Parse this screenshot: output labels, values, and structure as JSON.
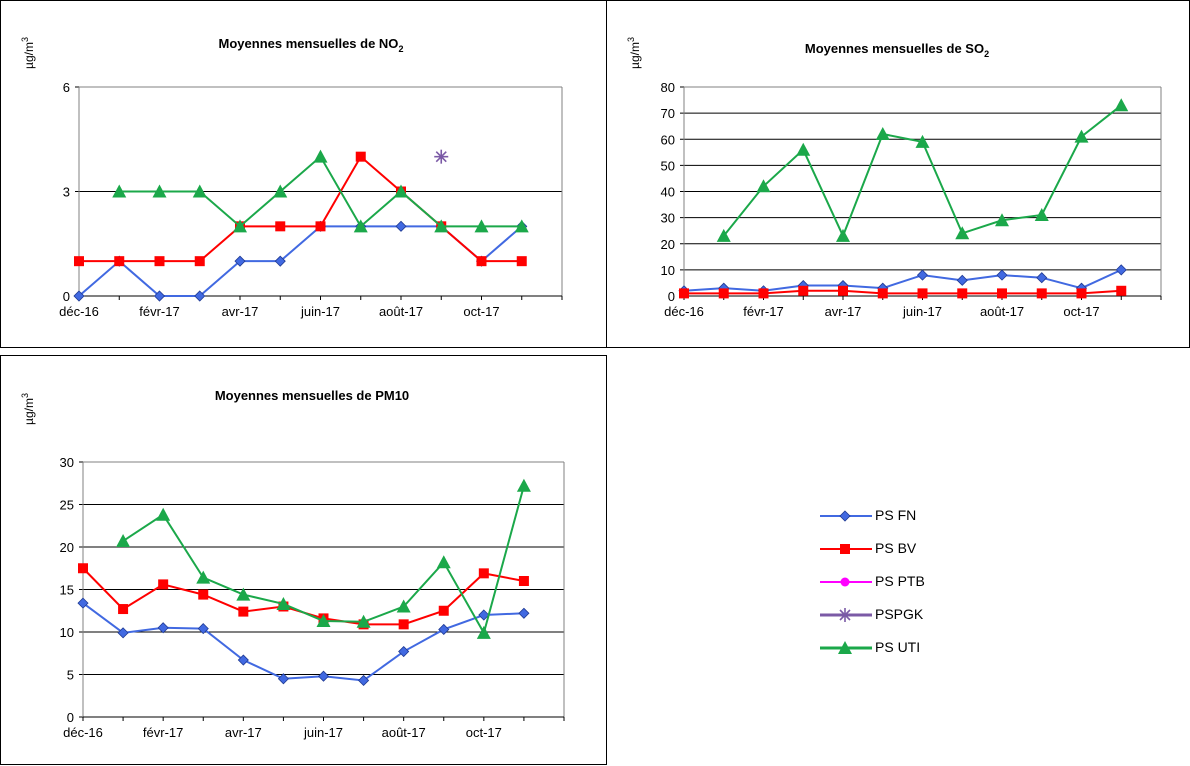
{
  "colors": {
    "PS FN": "#4169E1",
    "PS BV": "#FF0000",
    "PS PTB": "#FF00FF",
    "PSPGK": "#7B5AA6",
    "PS UTI": "#1BA84A"
  },
  "legend": {
    "items": [
      {
        "label": "PS FN",
        "marker": "diamond"
      },
      {
        "label": "PS BV",
        "marker": "square"
      },
      {
        "label": "PS PTB",
        "marker": "circle"
      },
      {
        "label": "PSPGK",
        "marker": "star"
      },
      {
        "label": "PS UTI",
        "marker": "triangle"
      }
    ]
  },
  "chart_data": [
    {
      "type": "line",
      "title": "Moyennes mensuelles de NO",
      "title_sub": "2",
      "ylabel": "µg/m",
      "ylabel_sup": "3",
      "ylim": [
        0,
        6
      ],
      "yticks": [
        "0",
        "3",
        "6"
      ],
      "x_tick_labels": [
        "déc-16",
        "févr-17",
        "avr-17",
        "juin-17",
        "août-17",
        "oct-17"
      ],
      "n_points": 12,
      "grid": true,
      "series": [
        {
          "name": "PS FN",
          "marker": "diamond",
          "values": [
            0,
            1,
            0,
            0,
            1,
            1,
            2,
            2,
            2,
            2,
            1,
            2
          ]
        },
        {
          "name": "PS BV",
          "marker": "square",
          "values": [
            1,
            1,
            1,
            1,
            2,
            2,
            2,
            4,
            3,
            2,
            1,
            1
          ]
        },
        {
          "name": "PSPGK",
          "marker": "star",
          "values": [
            null,
            null,
            null,
            null,
            null,
            null,
            null,
            null,
            null,
            4,
            null,
            null
          ]
        },
        {
          "name": "PS UTI",
          "marker": "triangle",
          "values": [
            null,
            3,
            3,
            3,
            2,
            3,
            4,
            2,
            3,
            2,
            2,
            2
          ]
        }
      ]
    },
    {
      "type": "line",
      "title": "Moyennes mensuelles de SO",
      "title_sub": "2",
      "ylabel": "µg/m",
      "ylabel_sup": "3",
      "ylim": [
        0,
        80
      ],
      "yticks": [
        "0",
        "10",
        "20",
        "30",
        "40",
        "50",
        "60",
        "70",
        "80"
      ],
      "x_tick_labels": [
        "déc-16",
        "févr-17",
        "avr-17",
        "juin-17",
        "août-17",
        "oct-17"
      ],
      "n_points": 12,
      "grid": true,
      "series": [
        {
          "name": "PS FN",
          "marker": "diamond",
          "values": [
            2,
            3,
            2,
            4,
            4,
            3,
            8,
            6,
            8,
            7,
            3,
            10
          ]
        },
        {
          "name": "PS BV",
          "marker": "square",
          "values": [
            1,
            1,
            1,
            2,
            2,
            1,
            1,
            1,
            1,
            1,
            1,
            2
          ]
        },
        {
          "name": "PS UTI",
          "marker": "triangle",
          "values": [
            null,
            23,
            42,
            56,
            23,
            62,
            59,
            24,
            29,
            31,
            61,
            73
          ]
        }
      ]
    },
    {
      "type": "line",
      "title": "Moyennes mensuelles de PM10",
      "title_sub": "",
      "ylabel": "µg/m",
      "ylabel_sup": "3",
      "ylim": [
        0,
        30
      ],
      "yticks": [
        "0",
        "5",
        "10",
        "15",
        "20",
        "25",
        "30"
      ],
      "x_tick_labels": [
        "déc-16",
        "févr-17",
        "avr-17",
        "juin-17",
        "août-17",
        "oct-17"
      ],
      "n_points": 12,
      "grid": true,
      "series": [
        {
          "name": "PS FN",
          "marker": "diamond",
          "values": [
            13.4,
            9.9,
            10.5,
            10.4,
            6.7,
            4.5,
            4.8,
            4.3,
            7.7,
            10.3,
            12.0,
            12.2
          ]
        },
        {
          "name": "PS BV",
          "marker": "square",
          "values": [
            17.5,
            12.7,
            15.6,
            14.4,
            12.4,
            13.0,
            11.6,
            10.9,
            10.9,
            12.5,
            16.9,
            16.0
          ]
        },
        {
          "name": "PS UTI",
          "marker": "triangle",
          "values": [
            null,
            20.7,
            23.8,
            16.4,
            14.4,
            13.3,
            11.3,
            11.2,
            13.0,
            18.2,
            9.9,
            27.2
          ]
        }
      ]
    }
  ]
}
